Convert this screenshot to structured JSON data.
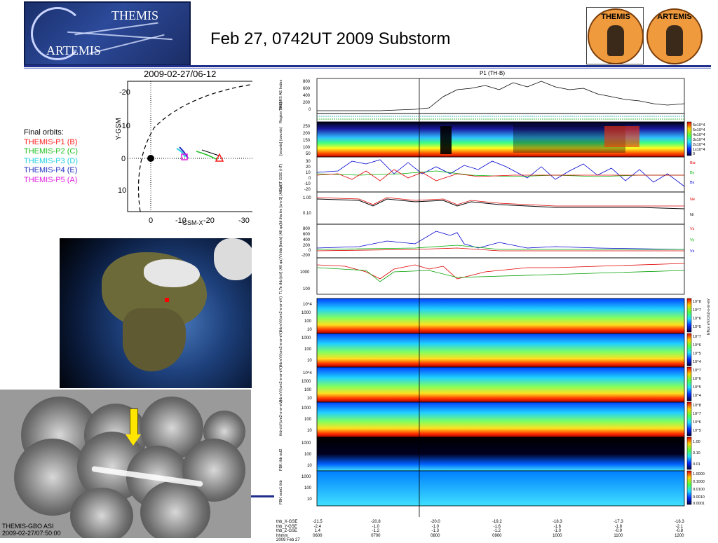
{
  "slide": {
    "title": "Feb 27, 0742UT 2009 Substorm",
    "logo_line1": "THEMIS",
    "logo_line2": "ARTEMIS",
    "badge_left": "THEMIS",
    "badge_right": "ARTEMIS"
  },
  "orbit": {
    "title": "2009-02-27/06-12",
    "x_label": "GSM-X",
    "y_label": "Y-GSM",
    "x_ticks": [
      "0",
      "-10",
      "-20",
      "-30"
    ],
    "y_ticks": [
      "-20",
      "-10",
      "0",
      "10"
    ],
    "legend_heading": "Final orbits:",
    "legend": [
      {
        "label": "THEMIS-P1 (B)",
        "color": "#ff2020"
      },
      {
        "label": "THEMIS-P2 (C)",
        "color": "#20c020"
      },
      {
        "label": "THEMIS-P3 (D)",
        "color": "#20d0e0"
      },
      {
        "label": "THEMIS-P4 (E)",
        "color": "#2030c0"
      },
      {
        "label": "THEMIS-P5 (A)",
        "color": "#e020e0"
      }
    ]
  },
  "asi": {
    "label1": "THEMIS-GBO ASI",
    "label2": "2009-02-27/07:50:00"
  },
  "stack": {
    "title": "P1 (TH-B)",
    "panels": [
      {
        "label": "THEMIS AE Index",
        "ticks": [
          "800",
          "600",
          "400",
          "200",
          "0"
        ]
      },
      {
        "label": "Region (thb)",
        "ticks": []
      },
      {
        "label": "[counts] (counts)",
        "ticks": [
          "250",
          "200",
          "150",
          "100",
          "50"
        ]
      },
      {
        "label": "B FIT GSE (nT)",
        "ticks": [
          "30",
          "20",
          "10",
          "0",
          "-10",
          "-20"
        ]
      },
      {
        "label": "Ni tha tre [cm-3] (All qa)",
        "ticks": [
          "1.00",
          "0.10"
        ]
      },
      {
        "label": "Vi thb [km/s] (All qa)",
        "ticks": [
          "800",
          "600",
          "400",
          "200",
          "0",
          "-200"
        ]
      },
      {
        "label": "Ti,Te thb [eV] (All qa)",
        "ticks": [
          "1000",
          "100"
        ]
      },
      {
        "label": "thb eV/(cm2-s-sr-eV)",
        "ticks": [
          "10^4",
          "1000",
          "100",
          "10"
        ]
      },
      {
        "label": "thb eV/(cm2-s-sr-eV)",
        "ticks": [
          "1000",
          "100",
          "10"
        ]
      },
      {
        "label": "thb eV/(cm2-s-sr-eV)",
        "ticks": [
          "10^4",
          "1000",
          "100",
          "10"
        ]
      },
      {
        "label": "thb eV/(cm2-s-sr-eV)",
        "ticks": [
          "1000",
          "100",
          "10"
        ]
      },
      {
        "label": "FBK thb scf2",
        "ticks": [
          "1000",
          "100",
          "10"
        ]
      },
      {
        "label": "FBK scm1 thb",
        "ticks": [
          "1000",
          "100",
          "10"
        ]
      }
    ],
    "b_legend": [
      {
        "label": "Btz",
        "color": "#e00000"
      },
      {
        "label": "By",
        "color": "#00b000"
      },
      {
        "label": "Bx",
        "color": "#0000d0"
      }
    ],
    "n_legend": [
      {
        "label": "Ne",
        "color": "#e00000"
      },
      {
        "label": "Ni",
        "color": "#000000"
      }
    ],
    "v_legend": [
      {
        "label": "Vz",
        "color": "#e00000"
      },
      {
        "label": "Vy",
        "color": "#00b000"
      },
      {
        "label": "Vx",
        "color": "#0000d0"
      }
    ],
    "counts_colorbar": [
      "5x10^4",
      "5x10^4",
      "4x10^4",
      "3x10^4",
      "2x10^4",
      "1x10^4",
      "0"
    ],
    "eflux_colorbar_1": [
      "10^8",
      "10^7",
      "10^6",
      "10^5"
    ],
    "eflux_colorbar_2": [
      "10^7",
      "10^6",
      "10^5",
      "10^4"
    ],
    "eflux_colorbar_3": [
      "10^7",
      "10^6",
      "10^5",
      "10^4"
    ],
    "eflux_colorbar_4": [
      "10^8",
      "10^7",
      "10^6",
      "10^5"
    ],
    "fbk_colorbar_1": [
      "1.00",
      "0.10",
      "0.01"
    ],
    "fbk_colorbar_2": [
      "1.0000",
      "0.1000",
      "0.0100",
      "0.0010",
      "0.0001"
    ],
    "eflux_unit": "Eflux eV/cm2-s-sr-eV",
    "x_axis_head": [
      "thb_X-GSE",
      "thb_Y-GSE",
      "thb_Z-GSE",
      "hhmm",
      "2009 Feb 27"
    ],
    "x_axis": [
      [
        "-21.5",
        "-2.4",
        "1.4",
        "0600",
        ""
      ],
      [
        "-20.8",
        "-1.0",
        "-1.2",
        "0700",
        ""
      ],
      [
        "-20.0",
        "-1.0",
        "-1.3",
        "0800",
        ""
      ],
      [
        "-19.2",
        "-1.6",
        "-1.2",
        "0900",
        ""
      ],
      [
        "-18.3",
        "-1.6",
        "-1.0",
        "1000",
        ""
      ],
      [
        "-17.3",
        "-1.8",
        "-0.9",
        "1100",
        ""
      ],
      [
        "-16.3",
        "-2.1",
        "-0.8",
        "1200",
        ""
      ]
    ]
  }
}
